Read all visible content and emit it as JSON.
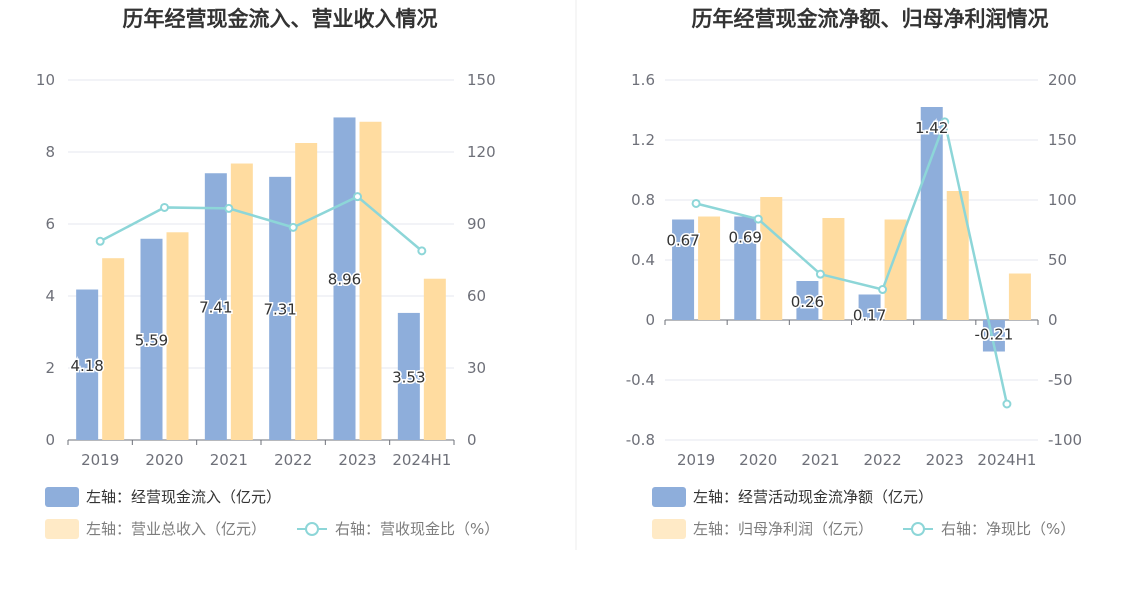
{
  "colors": {
    "bar1": "#8eaedb",
    "bar2": "#ffdca0",
    "line": "#8dd6d8",
    "grid": "#e4e7ef",
    "axis": "#6e7079",
    "divider": "#eeeeee"
  },
  "chart_data": [
    {
      "type": "bar",
      "title": "历年经营现金流入、营业收入情况",
      "categories": [
        "2019",
        "2020",
        "2021",
        "2022",
        "2023",
        "2024H1"
      ],
      "left_axis": {
        "min": 0,
        "max": 10,
        "ticks": [
          "0",
          "2",
          "4",
          "6",
          "8",
          "10"
        ]
      },
      "right_axis": {
        "min": 0,
        "max": 150,
        "ticks": [
          "0",
          "30",
          "60",
          "90",
          "120",
          "150"
        ]
      },
      "grid": true,
      "legend_position": "bottom-left",
      "series": [
        {
          "name": "左轴：经营现金流入（亿元）",
          "type": "bar",
          "axis": "left",
          "values": [
            4.18,
            5.59,
            7.41,
            7.31,
            8.96,
            3.53
          ],
          "labels": [
            "4.18",
            "5.59",
            "7.41",
            "7.31",
            "8.96",
            "3.53"
          ]
        },
        {
          "name": "左轴：营业总收入（亿元）",
          "type": "bar",
          "axis": "left",
          "values": [
            5.05,
            5.77,
            7.68,
            8.25,
            8.84,
            4.48
          ]
        },
        {
          "name": "右轴：营收现金比（%）",
          "type": "line",
          "axis": "right",
          "values": [
            82.8,
            96.9,
            96.5,
            88.6,
            101.4,
            78.8
          ]
        }
      ]
    },
    {
      "type": "bar",
      "title": "历年经营现金流净额、归母净利润情况",
      "categories": [
        "2019",
        "2020",
        "2021",
        "2022",
        "2023",
        "2024H1"
      ],
      "left_axis": {
        "min": -0.8,
        "max": 1.6,
        "ticks": [
          "-0.8",
          "-0.4",
          "0",
          "0.4",
          "0.8",
          "1.2",
          "1.6"
        ]
      },
      "right_axis": {
        "min": -100,
        "max": 200,
        "ticks": [
          "-100",
          "-50",
          "0",
          "50",
          "100",
          "150",
          "200"
        ]
      },
      "grid": true,
      "legend_position": "bottom-left",
      "series": [
        {
          "name": "左轴：经营活动现金流净额（亿元）",
          "type": "bar",
          "axis": "left",
          "values": [
            0.67,
            0.69,
            0.26,
            0.17,
            1.42,
            -0.21
          ],
          "labels": [
            "0.67",
            "0.69",
            "0.26",
            "0.17",
            "1.42",
            "-0.21"
          ]
        },
        {
          "name": "左轴：归母净利润（亿元）",
          "type": "bar",
          "axis": "left",
          "values": [
            0.69,
            0.82,
            0.68,
            0.67,
            0.86,
            0.31
          ]
        },
        {
          "name": "右轴：净现比（%）",
          "type": "line",
          "axis": "right",
          "values": [
            97.1,
            84.1,
            38.2,
            25.4,
            165.1,
            -70.0
          ]
        }
      ]
    }
  ]
}
